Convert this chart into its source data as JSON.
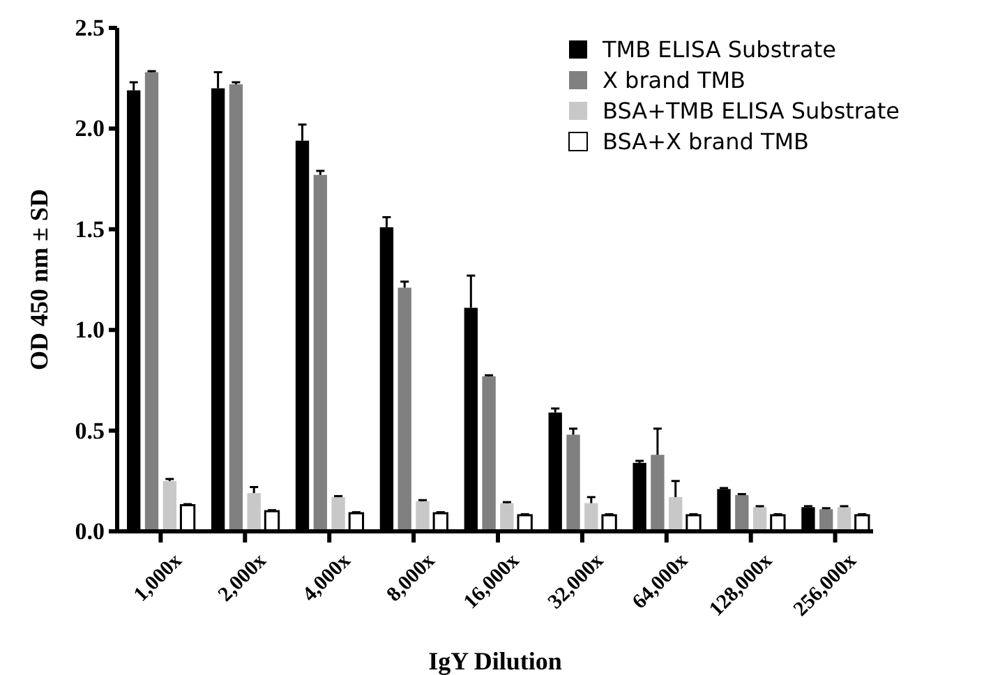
{
  "chart_data": {
    "type": "bar",
    "xlabel": "IgY Dilution",
    "ylabel": "OD 450 nm ± SD",
    "categories": [
      "1,000x",
      "2,000x",
      "4,000x",
      "8,000x",
      "16,000x",
      "32,000x",
      "64,000x",
      "128,000x",
      "256,000x"
    ],
    "ylim": [
      0,
      2.5
    ],
    "yticks": [
      {
        "value": 0,
        "label": "0.0"
      },
      0.5,
      {
        "value": 1,
        "label": "1.0"
      },
      1.5,
      {
        "value": 2,
        "label": "2.0"
      },
      2.5
    ],
    "legend": "top right",
    "series": [
      {
        "name": "TMB ELISA Substrate",
        "color": "#000000",
        "values": [
          2.19,
          2.2,
          1.94,
          1.51,
          1.11,
          0.59,
          0.34,
          0.21,
          0.12
        ],
        "errors": [
          0.04,
          0.08,
          0.08,
          0.05,
          0.16,
          0.02,
          0.01,
          0.005,
          0.005
        ]
      },
      {
        "name": "X brand TMB",
        "color": "#808080",
        "values": [
          2.28,
          2.22,
          1.77,
          1.21,
          0.77,
          0.48,
          0.38,
          0.18,
          0.11
        ],
        "errors": [
          0.005,
          0.01,
          0.02,
          0.03,
          0.005,
          0.03,
          0.13,
          0.005,
          0.005
        ]
      },
      {
        "name": "BSA+TMB ELISA Substrate",
        "color": "#c8c8c8",
        "values": [
          0.25,
          0.19,
          0.17,
          0.15,
          0.14,
          0.14,
          0.17,
          0.12,
          0.12
        ],
        "errors": [
          0.01,
          0.03,
          0.005,
          0.005,
          0.005,
          0.03,
          0.08,
          0.005,
          0.005
        ]
      },
      {
        "name": "BSA+X brand TMB",
        "color": "#ffffff",
        "values": [
          0.13,
          0.1,
          0.09,
          0.09,
          0.08,
          0.08,
          0.08,
          0.08,
          0.08
        ],
        "errors": [
          0.005,
          0.005,
          0.005,
          0.005,
          0.005,
          0.005,
          0.005,
          0.005,
          0.005
        ]
      }
    ]
  }
}
